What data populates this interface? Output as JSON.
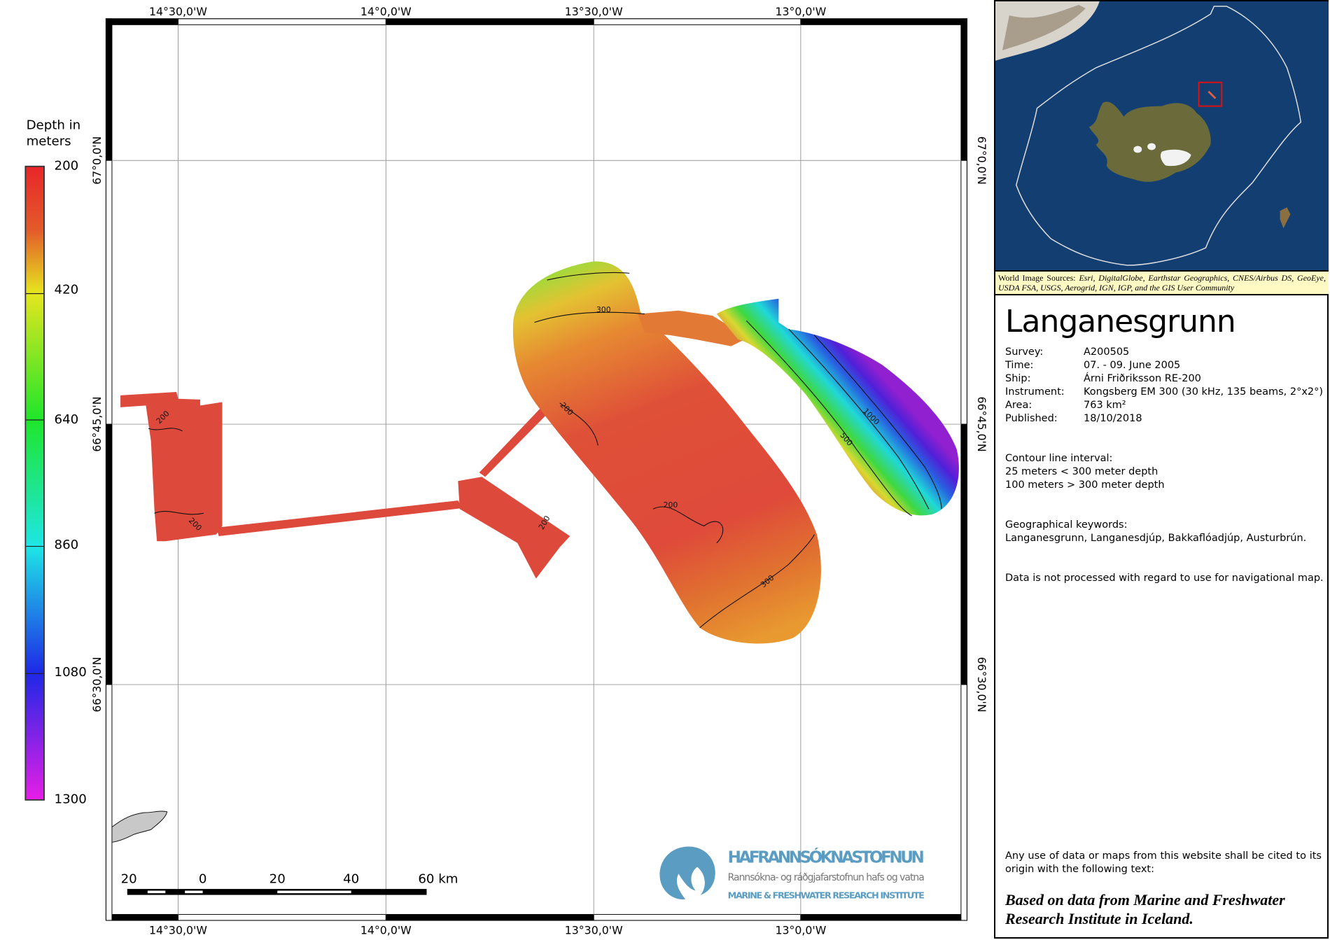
{
  "map": {
    "top_lon_labels": [
      "14°30,0'W",
      "14°0,0'W",
      "13°30,0'W",
      "13°0,0'W"
    ],
    "bottom_lon_labels": [
      "14°30,0'W",
      "14°0,0'W",
      "13°30,0'W",
      "13°0,0'W"
    ],
    "lat_labels": [
      "67°0,0'N",
      "66°45,0'N",
      "66°30,0'N"
    ],
    "contour_labels": [
      "300",
      "200",
      "200",
      "200",
      "200",
      "200",
      "300",
      "1000",
      "500"
    ],
    "scalebar": {
      "labels": [
        "20",
        "0",
        "20",
        "40",
        "60 km"
      ]
    }
  },
  "legend": {
    "title_line1": "Depth    in",
    "title_line2": "meters",
    "ticks": [
      "200",
      "420",
      "640",
      "860",
      "1080",
      "1300"
    ],
    "colors": [
      "#e8262a",
      "#e6e61e",
      "#1ee62a",
      "#1ee6e6",
      "#1e28e6",
      "#e61ee6"
    ]
  },
  "logo": {
    "name": "HAFRANNSÓKNASTOFNUN",
    "subtitle": "Rannsókna- og ráðgjafarstofnun hafs og vatna",
    "english": "MARINE & FRESHWATER RESEARCH INSTITUTE",
    "color": "#5b9dc2"
  },
  "inset": {
    "sources_prefix": "World Image Sources:",
    "sources_list": "Esri, DigitalGlobe, Earthstar Geographics, CNES/Airbus DS, GeoEye, USDA FSA, USGS, Aerogrid, IGN, IGP, and the GIS User Community"
  },
  "info": {
    "title": "Langanesgrunn",
    "fields": [
      {
        "k": "Survey:",
        "v": "A200505"
      },
      {
        "k": "Time:",
        "v": "07. - 09. June 2005"
      },
      {
        "k": "Ship:",
        "v": "Árni Friðriksson RE-200"
      },
      {
        "k": "Instrument:",
        "v": "Kongsberg EM 300 (30 kHz, 135 beams, 2°x2°)"
      },
      {
        "k": "Area:",
        "v": "763 km²"
      },
      {
        "k": "Published:",
        "v": "18/10/2018"
      }
    ],
    "contour_title": "Contour line interval:",
    "contour_1": "25 meters < 300 meter depth",
    "contour_2": "100 meters > 300 meter depth",
    "keywords_title": "Geographical keywords:",
    "keywords": "Langanesgrunn, Langanesdjúp, Bakkaflóadjúp, Austurbrún.",
    "disclaimer": "Data is not processed with regard to use for navigational map.",
    "citation_note": "Any use of data or maps from this website shall be cited to its origin with the following text:",
    "citation": "Based on data from Marine and Freshwater Research Institute in Iceland."
  }
}
